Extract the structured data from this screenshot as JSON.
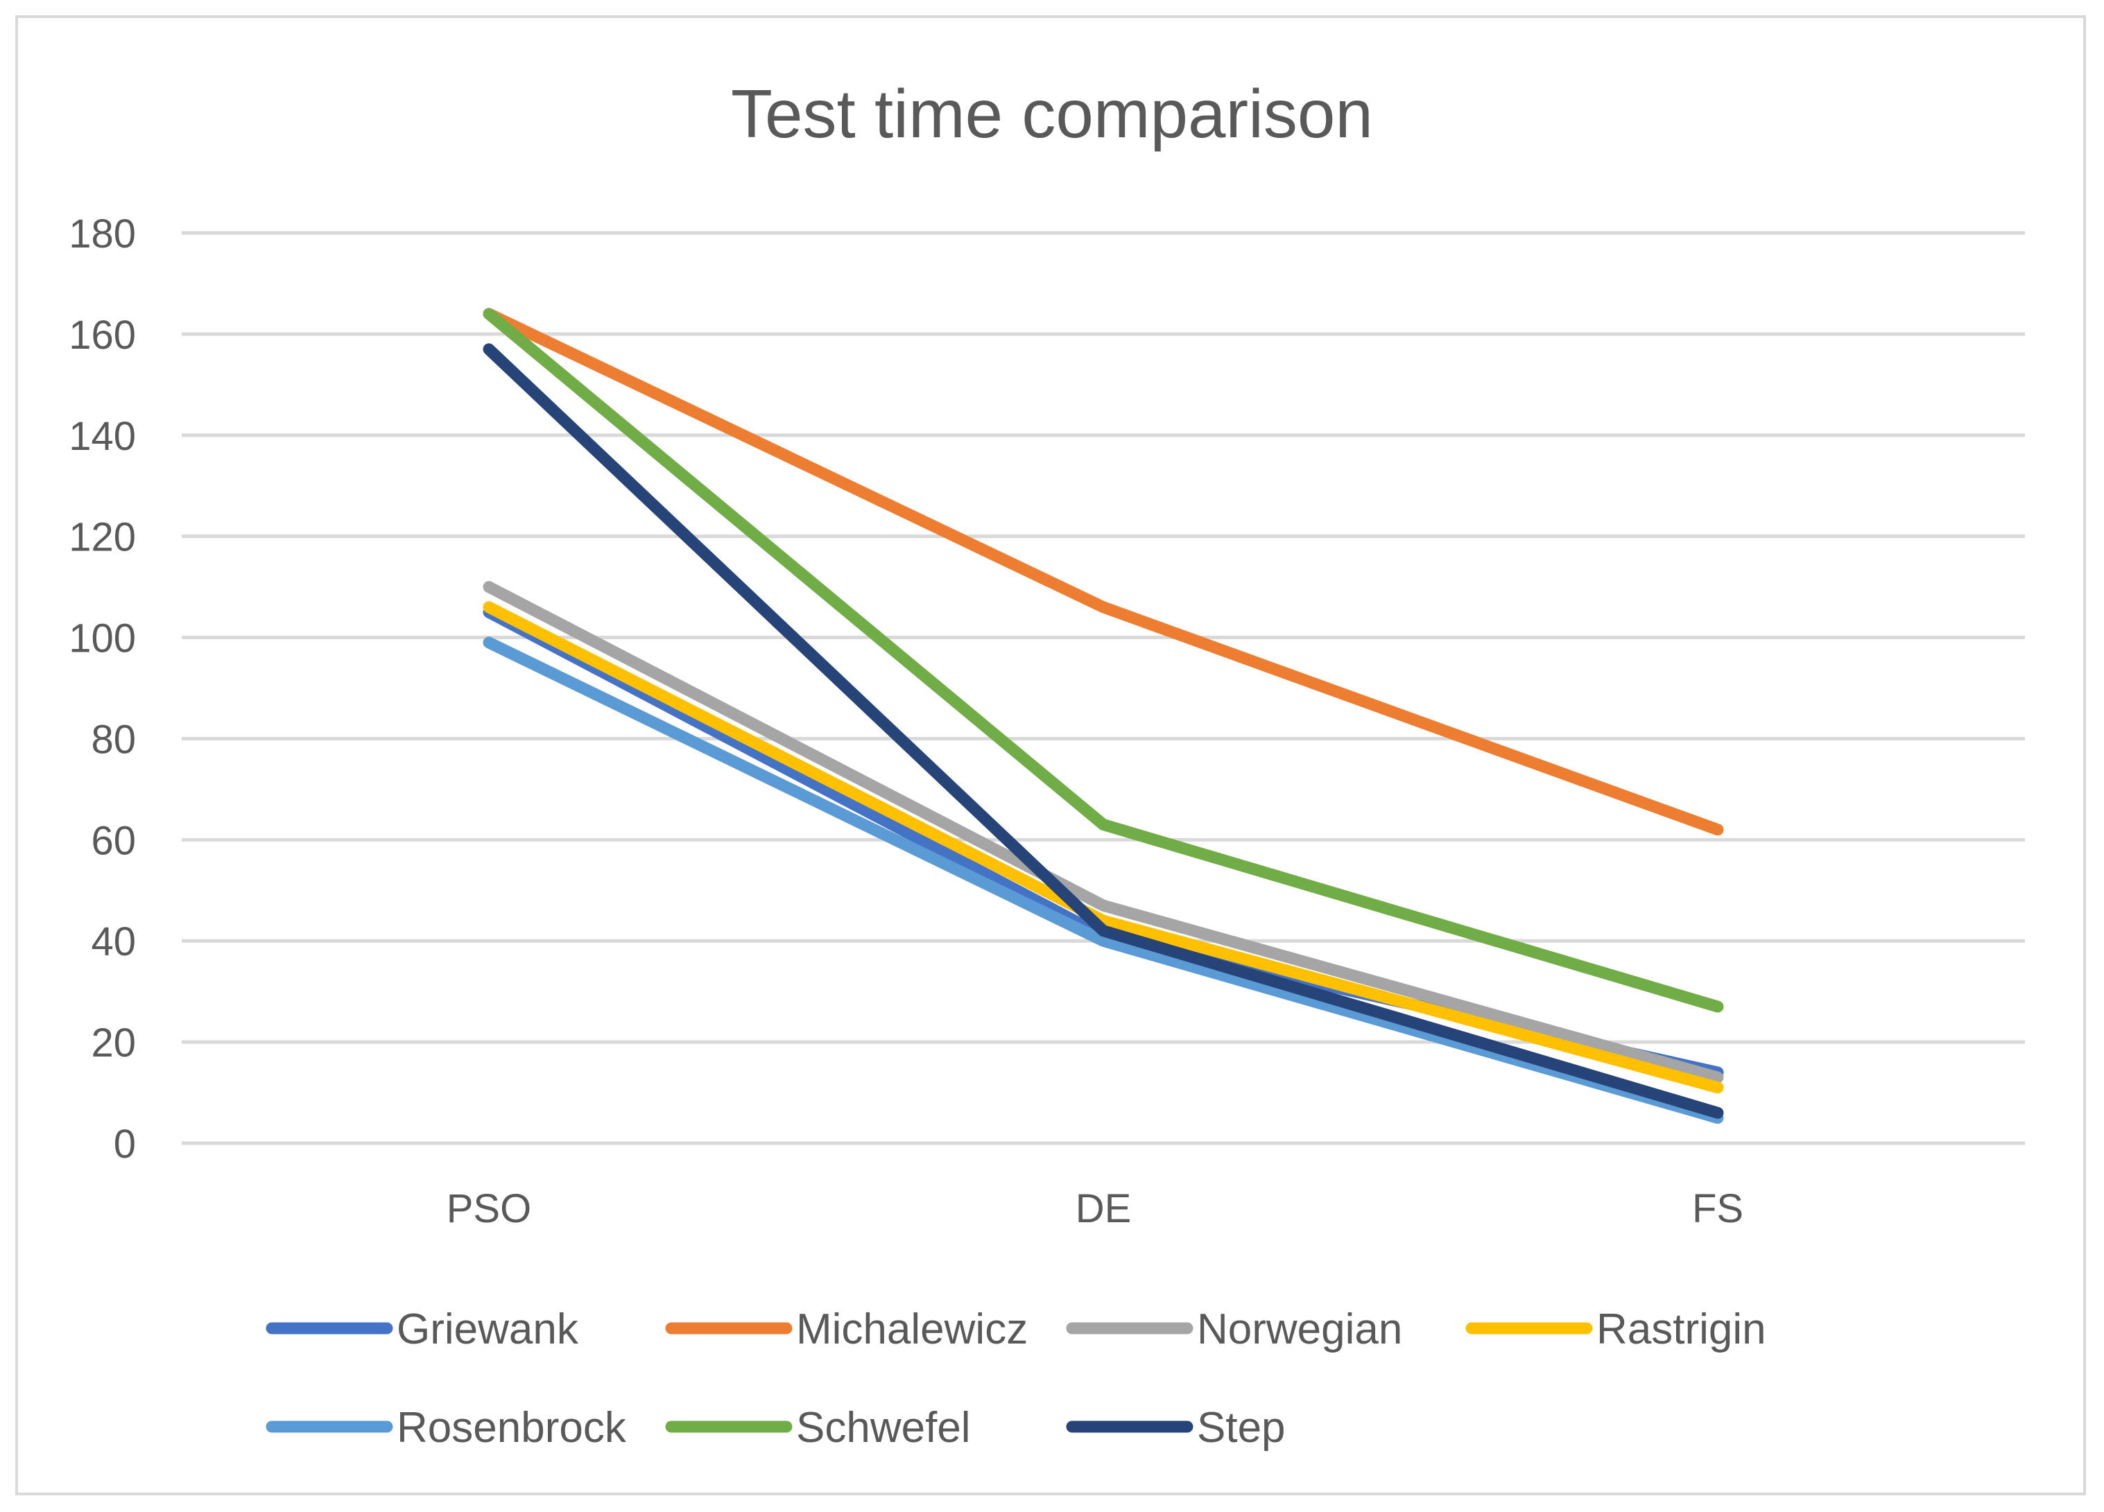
{
  "chart_data": {
    "type": "line",
    "title": "Test time comparison",
    "xlabel": "",
    "ylabel": "",
    "categories": [
      "PSO",
      "DE",
      "FS"
    ],
    "ylim": [
      0,
      180
    ],
    "yticks": [
      0,
      20,
      40,
      60,
      80,
      100,
      120,
      140,
      160,
      180
    ],
    "grid": true,
    "legend_position": "bottom",
    "series": [
      {
        "name": "Griewank",
        "color": "#4472c4",
        "values": [
          105,
          41,
          14
        ]
      },
      {
        "name": "Michalewicz",
        "color": "#ed7d31",
        "values": [
          164,
          106,
          62
        ]
      },
      {
        "name": "Norwegian",
        "color": "#a5a5a5",
        "values": [
          110,
          47,
          13
        ]
      },
      {
        "name": "Rastrigin",
        "color": "#ffc000",
        "values": [
          106,
          44,
          11
        ]
      },
      {
        "name": "Rosenbrock",
        "color": "#5b9bd5",
        "values": [
          99,
          40,
          5
        ]
      },
      {
        "name": "Schwefel",
        "color": "#70ad47",
        "values": [
          164,
          63,
          27
        ]
      },
      {
        "name": "Step",
        "color": "#264478",
        "values": [
          157,
          42,
          6
        ]
      }
    ]
  }
}
